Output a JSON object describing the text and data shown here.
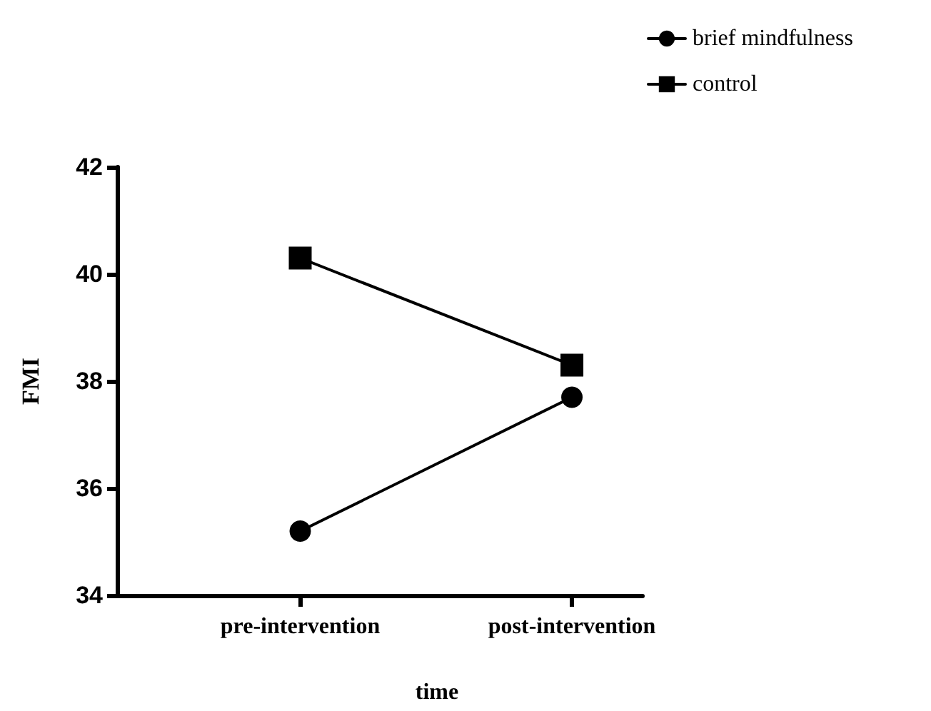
{
  "chart_data": {
    "type": "line",
    "xlabel": "time",
    "ylabel": "FMI",
    "categories": [
      "pre-intervention",
      "post-intervention"
    ],
    "series": [
      {
        "name": "brief mindfulness",
        "color": "#000000",
        "marker": "circle",
        "values": [
          35.2,
          37.7
        ]
      },
      {
        "name": "control",
        "color": "#000000",
        "marker": "square",
        "values": [
          40.3,
          38.3
        ]
      }
    ],
    "ylim": [
      34,
      42
    ],
    "yticks": [
      34,
      36,
      38,
      40,
      42
    ],
    "grid": false,
    "legend": "top right",
    "line_style": "solid"
  }
}
